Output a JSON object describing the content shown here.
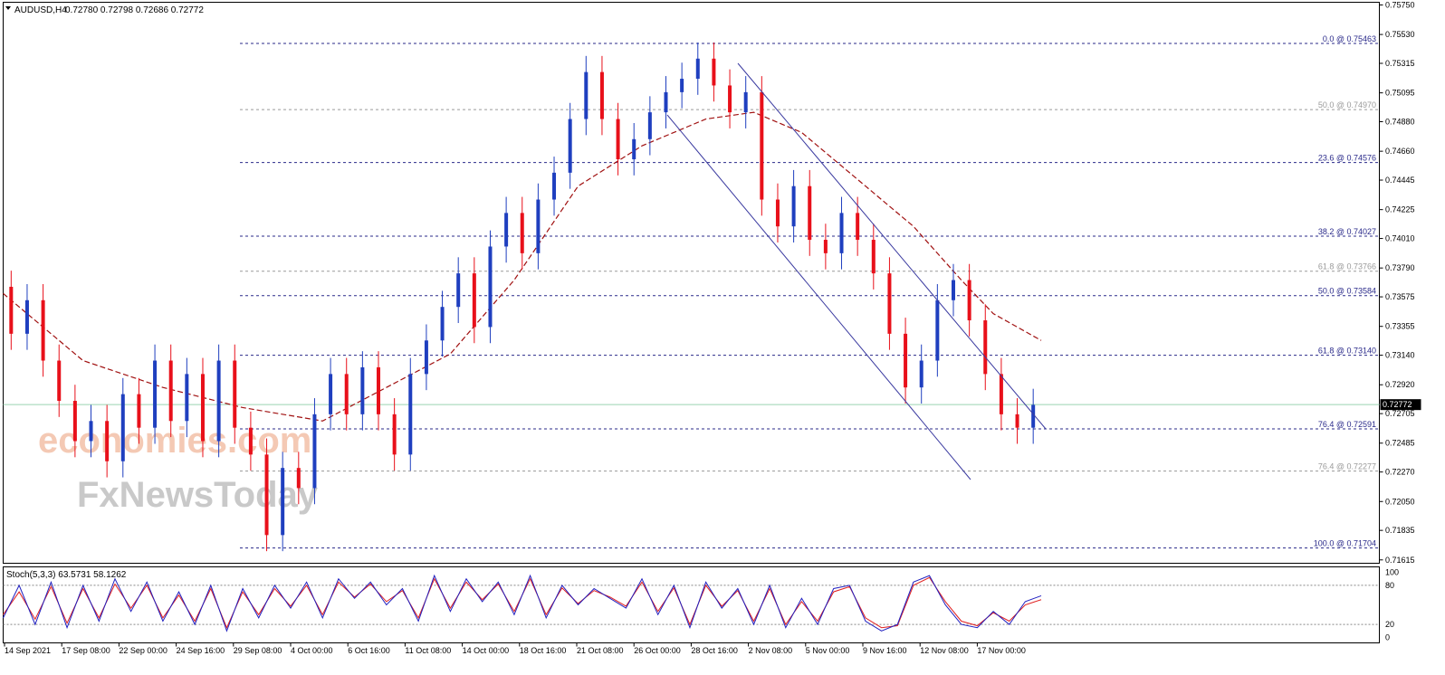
{
  "header": {
    "symbol_label": "AUDUSD,H4",
    "ohlc_text": "0.72780 0.72798 0.72686 0.72772"
  },
  "stoch": {
    "label": "Stoch(5,3,3) 63.5731 58.1262",
    "axis_labels": [
      "100",
      "80",
      "20",
      "0"
    ],
    "levels": [
      80,
      20
    ]
  },
  "watermark": {
    "line1": "economies.com",
    "line2": "FxNewsToday"
  },
  "colors": {
    "bull": "#1f3fbf",
    "bear": "#e8101a",
    "ma": "#a01010",
    "fib": "#2a2a8a",
    "fib_gray": "#9a9a9a",
    "channel": "#3a3aa0",
    "stoch_main": "#2020c0",
    "stoch_signal": "#e02020",
    "price_line": "#9ad3b0"
  },
  "chart_data": {
    "type": "line",
    "title": "AUDUSD,H4",
    "ylim": [
      0.7159,
      0.7577
    ],
    "y_ticks": [
      "0.75750",
      "0.75530",
      "0.75315",
      "0.75095",
      "0.74880",
      "0.74660",
      "0.74445",
      "0.74225",
      "0.74010",
      "0.73790",
      "0.73575",
      "0.73355",
      "0.73140",
      "0.72920",
      "0.72705",
      "0.72485",
      "0.72270",
      "0.72050",
      "0.71835",
      "0.71615"
    ],
    "x_ticks": [
      "14 Sep 2021",
      "17 Sep 08:00",
      "22 Sep 00:00",
      "24 Sep 16:00",
      "29 Sep 08:00",
      "4 Oct 00:00",
      "6 Oct 16:00",
      "11 Oct 08:00",
      "14 Oct 00:00",
      "18 Oct 16:00",
      "21 Oct 08:00",
      "26 Oct 00:00",
      "28 Oct 16:00",
      "2 Nov 08:00",
      "5 Nov 00:00",
      "9 Nov 16:00",
      "12 Nov 08:00",
      "17 Nov 00:00"
    ],
    "current_price": "0.72772",
    "fib_levels": [
      {
        "label": "0.0 @ 0.75463",
        "value": 0.75463,
        "style": "dark"
      },
      {
        "label": "50.0 @ 0.74970",
        "value": 0.7497,
        "style": "gray"
      },
      {
        "label": "23.6 @ 0.74576",
        "value": 0.74576,
        "style": "dark"
      },
      {
        "label": "38.2 @ 0.74027",
        "value": 0.74027,
        "style": "dark"
      },
      {
        "label": "61.8 @ 0.73766",
        "value": 0.73766,
        "style": "gray"
      },
      {
        "label": "50.0 @ 0.73584",
        "value": 0.73584,
        "style": "dark"
      },
      {
        "label": "61.8 @ 0.73140",
        "value": 0.7314,
        "style": "dark"
      },
      {
        "label": "76.4 @ 0.72591",
        "value": 0.72591,
        "style": "dark"
      },
      {
        "label": "76.4 @ 0.72277",
        "value": 0.72277,
        "style": "gray"
      },
      {
        "label": "100.0 @ 0.71704",
        "value": 0.71704,
        "style": "dark"
      }
    ],
    "price_path": [
      [
        0,
        0.7365
      ],
      [
        2,
        0.733
      ],
      [
        4,
        0.7355
      ],
      [
        6,
        0.731
      ],
      [
        8,
        0.728
      ],
      [
        10,
        0.725
      ],
      [
        12,
        0.7265
      ],
      [
        14,
        0.7235
      ],
      [
        16,
        0.7285
      ],
      [
        18,
        0.726
      ],
      [
        20,
        0.731
      ],
      [
        22,
        0.7265
      ],
      [
        24,
        0.73
      ],
      [
        26,
        0.725
      ],
      [
        28,
        0.731
      ],
      [
        30,
        0.726
      ],
      [
        32,
        0.724
      ],
      [
        34,
        0.718
      ],
      [
        36,
        0.723
      ],
      [
        38,
        0.7215
      ],
      [
        40,
        0.727
      ],
      [
        42,
        0.73
      ],
      [
        44,
        0.727
      ],
      [
        46,
        0.7305
      ],
      [
        48,
        0.727
      ],
      [
        50,
        0.724
      ],
      [
        52,
        0.73
      ],
      [
        54,
        0.7325
      ],
      [
        56,
        0.735
      ],
      [
        58,
        0.7375
      ],
      [
        60,
        0.7335
      ],
      [
        62,
        0.7395
      ],
      [
        64,
        0.742
      ],
      [
        66,
        0.739
      ],
      [
        68,
        0.743
      ],
      [
        70,
        0.745
      ],
      [
        72,
        0.749
      ],
      [
        74,
        0.7525
      ],
      [
        76,
        0.749
      ],
      [
        78,
        0.746
      ],
      [
        80,
        0.7475
      ],
      [
        82,
        0.7495
      ],
      [
        84,
        0.751
      ],
      [
        86,
        0.752
      ],
      [
        88,
        0.7535
      ],
      [
        90,
        0.7515
      ],
      [
        92,
        0.7495
      ],
      [
        94,
        0.751
      ],
      [
        96,
        0.743
      ],
      [
        98,
        0.741
      ],
      [
        100,
        0.744
      ],
      [
        102,
        0.74
      ],
      [
        104,
        0.739
      ],
      [
        106,
        0.742
      ],
      [
        108,
        0.74
      ],
      [
        110,
        0.7375
      ],
      [
        112,
        0.733
      ],
      [
        114,
        0.729
      ],
      [
        116,
        0.731
      ],
      [
        118,
        0.7355
      ],
      [
        120,
        0.737
      ],
      [
        122,
        0.734
      ],
      [
        124,
        0.73
      ],
      [
        126,
        0.727
      ],
      [
        128,
        0.726
      ],
      [
        130,
        0.7277
      ]
    ],
    "ma_path": [
      [
        0,
        0.736
      ],
      [
        10,
        0.731
      ],
      [
        20,
        0.729
      ],
      [
        30,
        0.7275
      ],
      [
        40,
        0.7265
      ],
      [
        48,
        0.729
      ],
      [
        56,
        0.7315
      ],
      [
        64,
        0.737
      ],
      [
        72,
        0.744
      ],
      [
        80,
        0.747
      ],
      [
        88,
        0.749
      ],
      [
        94,
        0.7495
      ],
      [
        100,
        0.748
      ],
      [
        108,
        0.744
      ],
      [
        114,
        0.741
      ],
      [
        120,
        0.737
      ],
      [
        124,
        0.7345
      ],
      [
        130,
        0.7325
      ]
    ],
    "stoch_main": [
      [
        0,
        30
      ],
      [
        2,
        80
      ],
      [
        4,
        20
      ],
      [
        6,
        85
      ],
      [
        8,
        15
      ],
      [
        10,
        80
      ],
      [
        12,
        25
      ],
      [
        14,
        90
      ],
      [
        16,
        40
      ],
      [
        18,
        85
      ],
      [
        20,
        25
      ],
      [
        22,
        70
      ],
      [
        24,
        20
      ],
      [
        26,
        80
      ],
      [
        28,
        10
      ],
      [
        30,
        75
      ],
      [
        32,
        30
      ],
      [
        34,
        80
      ],
      [
        36,
        45
      ],
      [
        38,
        85
      ],
      [
        40,
        30
      ],
      [
        42,
        90
      ],
      [
        44,
        60
      ],
      [
        46,
        85
      ],
      [
        48,
        50
      ],
      [
        50,
        75
      ],
      [
        52,
        25
      ],
      [
        54,
        95
      ],
      [
        56,
        40
      ],
      [
        58,
        90
      ],
      [
        60,
        55
      ],
      [
        62,
        85
      ],
      [
        64,
        35
      ],
      [
        66,
        95
      ],
      [
        68,
        30
      ],
      [
        70,
        80
      ],
      [
        72,
        50
      ],
      [
        74,
        75
      ],
      [
        76,
        60
      ],
      [
        78,
        45
      ],
      [
        80,
        90
      ],
      [
        82,
        35
      ],
      [
        84,
        80
      ],
      [
        86,
        15
      ],
      [
        88,
        85
      ],
      [
        90,
        45
      ],
      [
        92,
        75
      ],
      [
        94,
        20
      ],
      [
        96,
        80
      ],
      [
        98,
        15
      ],
      [
        100,
        60
      ],
      [
        102,
        20
      ],
      [
        104,
        75
      ],
      [
        106,
        80
      ],
      [
        108,
        25
      ],
      [
        110,
        10
      ],
      [
        112,
        20
      ],
      [
        114,
        85
      ],
      [
        116,
        95
      ],
      [
        118,
        50
      ],
      [
        120,
        20
      ],
      [
        122,
        15
      ],
      [
        124,
        40
      ],
      [
        126,
        20
      ],
      [
        128,
        55
      ],
      [
        130,
        64
      ]
    ],
    "stoch_signal": [
      [
        0,
        35
      ],
      [
        2,
        70
      ],
      [
        4,
        28
      ],
      [
        6,
        78
      ],
      [
        8,
        22
      ],
      [
        10,
        75
      ],
      [
        12,
        30
      ],
      [
        14,
        82
      ],
      [
        16,
        45
      ],
      [
        18,
        80
      ],
      [
        20,
        30
      ],
      [
        22,
        65
      ],
      [
        24,
        25
      ],
      [
        26,
        75
      ],
      [
        28,
        15
      ],
      [
        30,
        70
      ],
      [
        32,
        35
      ],
      [
        34,
        75
      ],
      [
        36,
        48
      ],
      [
        38,
        80
      ],
      [
        40,
        35
      ],
      [
        42,
        85
      ],
      [
        44,
        62
      ],
      [
        46,
        82
      ],
      [
        48,
        55
      ],
      [
        50,
        72
      ],
      [
        52,
        30
      ],
      [
        54,
        90
      ],
      [
        56,
        45
      ],
      [
        58,
        85
      ],
      [
        60,
        58
      ],
      [
        62,
        82
      ],
      [
        64,
        40
      ],
      [
        66,
        90
      ],
      [
        68,
        35
      ],
      [
        70,
        76
      ],
      [
        72,
        52
      ],
      [
        74,
        72
      ],
      [
        76,
        62
      ],
      [
        78,
        48
      ],
      [
        80,
        85
      ],
      [
        82,
        40
      ],
      [
        84,
        76
      ],
      [
        86,
        20
      ],
      [
        88,
        80
      ],
      [
        90,
        48
      ],
      [
        92,
        72
      ],
      [
        94,
        25
      ],
      [
        96,
        75
      ],
      [
        98,
        20
      ],
      [
        100,
        55
      ],
      [
        102,
        25
      ],
      [
        104,
        70
      ],
      [
        106,
        78
      ],
      [
        108,
        30
      ],
      [
        110,
        15
      ],
      [
        112,
        18
      ],
      [
        114,
        80
      ],
      [
        116,
        92
      ],
      [
        118,
        55
      ],
      [
        120,
        25
      ],
      [
        122,
        18
      ],
      [
        124,
        38
      ],
      [
        126,
        25
      ],
      [
        128,
        50
      ],
      [
        130,
        58
      ]
    ]
  }
}
